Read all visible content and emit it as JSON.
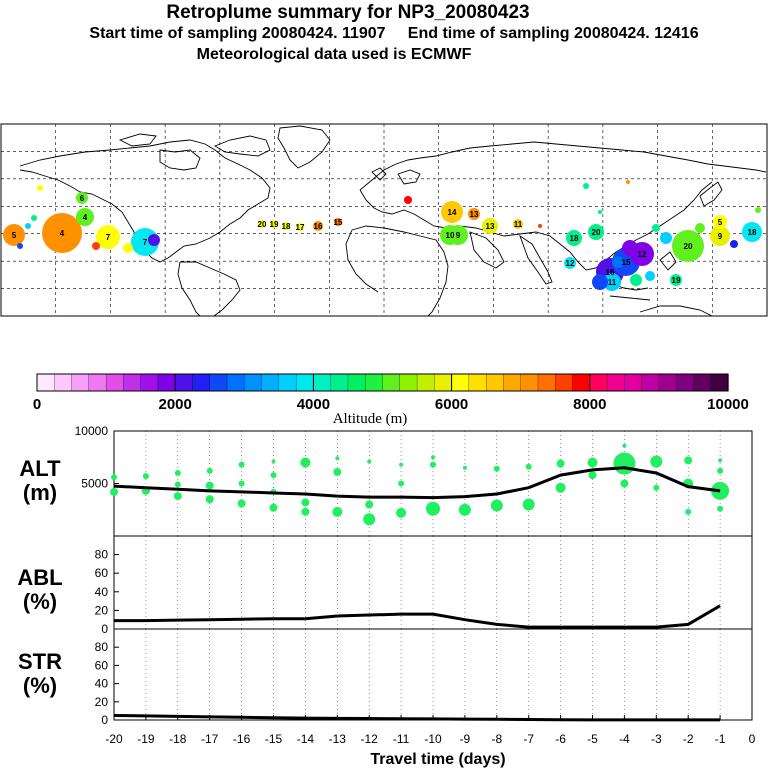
{
  "header": {
    "title": "Retroplume summary for NP3_20080423",
    "sampling": "Start time of sampling 20080424. 11907     End time of sampling 20080424. 12416",
    "met": "Meteorological data used is ECMWF"
  },
  "colorbar": {
    "colors": [
      "#ffe8ff",
      "#ffc8ff",
      "#f8a0f8",
      "#f078f0",
      "#e050e8",
      "#c030e8",
      "#a010e8",
      "#8000e8",
      "#5010e8",
      "#2020f0",
      "#1048f8",
      "#0070ff",
      "#0090ff",
      "#00b0ff",
      "#00d0ff",
      "#00e8f0",
      "#00f0c0",
      "#00f090",
      "#00f060",
      "#20f040",
      "#60f020",
      "#90f000",
      "#c0f000",
      "#e8f000",
      "#ffff00",
      "#ffe000",
      "#ffc800",
      "#ffa800",
      "#ff9000",
      "#ff7000",
      "#ff4000",
      "#ff0000",
      "#ff0060",
      "#f00090",
      "#e000a0",
      "#c000a0",
      "#a00090",
      "#800080",
      "#600060",
      "#400040"
    ],
    "tick_labels": [
      "0",
      "2000",
      "4000",
      "6000",
      "8000",
      "10000"
    ],
    "axis_title": "Altitude (m)"
  },
  "map_labels": [
    {
      "t": "5",
      "c": "#ff9000"
    },
    {
      "t": "4",
      "c": "#ff9000"
    },
    {
      "t": "4",
      "c": "#60f020"
    },
    {
      "t": "6",
      "c": "#60f020"
    },
    {
      "t": "7",
      "c": "#ffff00"
    },
    {
      "t": "7",
      "c": "#00e8f0"
    },
    {
      "t": "20",
      "c": "#ffff00"
    },
    {
      "t": "19",
      "c": "#ffff00"
    },
    {
      "t": "18",
      "c": "#ffff00"
    },
    {
      "t": "17",
      "c": "#ffff00"
    },
    {
      "t": "16",
      "c": "#ff9000"
    },
    {
      "t": "15",
      "c": "#ff7000"
    },
    {
      "t": "14",
      "c": "#ffc800"
    },
    {
      "t": "13",
      "c": "#ff9000"
    },
    {
      "t": "10",
      "c": "#60f020"
    },
    {
      "t": "9",
      "c": "#60f020"
    },
    {
      "t": "13",
      "c": "#e8f000"
    },
    {
      "t": "11",
      "c": "#ffc800"
    },
    {
      "t": "18",
      "c": "#00f090"
    },
    {
      "t": "20",
      "c": "#00f090"
    },
    {
      "t": "16",
      "c": "#5010e8"
    },
    {
      "t": "15",
      "c": "#1048f8"
    },
    {
      "t": "12",
      "c": "#8000e8"
    },
    {
      "t": "11",
      "c": "#00d0ff"
    },
    {
      "t": "19",
      "c": "#00f090"
    },
    {
      "t": "20",
      "c": "#60f020"
    },
    {
      "t": "18",
      "c": "#00e8f0"
    },
    {
      "t": "9",
      "c": "#e8f000"
    },
    {
      "t": "5",
      "c": "#ffff00"
    },
    {
      "t": "12",
      "c": "#00e8f0"
    }
  ],
  "chart_data": [
    {
      "type": "scatter+line",
      "name": "ALT",
      "ylabel": "ALT\n(m)",
      "ylabel_top": "ALT",
      "ylabel_bottom": "(m)",
      "ylim": [
        0,
        10000
      ],
      "yticks": [
        "10000",
        "5000"
      ],
      "line": {
        "x": [
          -20,
          -19,
          -18,
          -17,
          -16,
          -15,
          -14,
          -13,
          -12,
          -11,
          -10,
          -9,
          -8,
          -7,
          -6,
          -5,
          -4,
          -3,
          -2,
          -1
        ],
        "y": [
          4750,
          4600,
          4450,
          4300,
          4200,
          4100,
          4000,
          3800,
          3700,
          3700,
          3650,
          3750,
          4000,
          4600,
          5800,
          6300,
          6500,
          6000,
          4700,
          4300
        ]
      },
      "points": [
        {
          "x": -20,
          "y": 5600,
          "r": 3
        },
        {
          "x": -20,
          "y": 4200,
          "r": 4
        },
        {
          "x": -19,
          "y": 5700,
          "r": 3
        },
        {
          "x": -19,
          "y": 4300,
          "r": 4
        },
        {
          "x": -18,
          "y": 6000,
          "r": 3
        },
        {
          "x": -18,
          "y": 4900,
          "r": 3
        },
        {
          "x": -18,
          "y": 3800,
          "r": 4
        },
        {
          "x": -17,
          "y": 6200,
          "r": 3
        },
        {
          "x": -17,
          "y": 4800,
          "r": 4
        },
        {
          "x": -17,
          "y": 3500,
          "r": 4
        },
        {
          "x": -16,
          "y": 6800,
          "r": 3
        },
        {
          "x": -16,
          "y": 5000,
          "r": 3
        },
        {
          "x": -16,
          "y": 3100,
          "r": 4
        },
        {
          "x": -15,
          "y": 7100,
          "r": 2
        },
        {
          "x": -15,
          "y": 5800,
          "r": 3
        },
        {
          "x": -15,
          "y": 4200,
          "r": 3
        },
        {
          "x": -15,
          "y": 2700,
          "r": 4
        },
        {
          "x": -14,
          "y": 7000,
          "r": 5
        },
        {
          "x": -14,
          "y": 3200,
          "r": 4
        },
        {
          "x": -14,
          "y": 2300,
          "r": 4
        },
        {
          "x": -13,
          "y": 7400,
          "r": 2
        },
        {
          "x": -13,
          "y": 6100,
          "r": 4
        },
        {
          "x": -13,
          "y": 2300,
          "r": 5
        },
        {
          "x": -12,
          "y": 7100,
          "r": 2
        },
        {
          "x": -12,
          "y": 3000,
          "r": 4
        },
        {
          "x": -12,
          "y": 1600,
          "r": 6
        },
        {
          "x": -11,
          "y": 6800,
          "r": 2
        },
        {
          "x": -11,
          "y": 5000,
          "r": 3
        },
        {
          "x": -11,
          "y": 2200,
          "r": 5
        },
        {
          "x": -10,
          "y": 7500,
          "r": 2
        },
        {
          "x": -10,
          "y": 6800,
          "r": 3
        },
        {
          "x": -10,
          "y": 2600,
          "r": 7
        },
        {
          "x": -9,
          "y": 6500,
          "r": 2
        },
        {
          "x": -9,
          "y": 2500,
          "r": 6
        },
        {
          "x": -8,
          "y": 6400,
          "r": 3
        },
        {
          "x": -8,
          "y": 2900,
          "r": 6
        },
        {
          "x": -7,
          "y": 6600,
          "r": 3
        },
        {
          "x": -7,
          "y": 3000,
          "r": 6
        },
        {
          "x": -6,
          "y": 6900,
          "r": 4
        },
        {
          "x": -6,
          "y": 4600,
          "r": 5
        },
        {
          "x": -5,
          "y": 7000,
          "r": 5
        },
        {
          "x": -5,
          "y": 5800,
          "r": 4
        },
        {
          "x": -4,
          "y": 8600,
          "r": 2
        },
        {
          "x": -4,
          "y": 6900,
          "r": 11
        },
        {
          "x": -4,
          "y": 5000,
          "r": 4
        },
        {
          "x": -3,
          "y": 7100,
          "r": 6
        },
        {
          "x": -3,
          "y": 4600,
          "r": 3
        },
        {
          "x": -2,
          "y": 7200,
          "r": 4
        },
        {
          "x": -2,
          "y": 5000,
          "r": 5
        },
        {
          "x": -2,
          "y": 2300,
          "r": 3
        },
        {
          "x": -1,
          "y": 7200,
          "r": 2
        },
        {
          "x": -1,
          "y": 6200,
          "r": 3
        },
        {
          "x": -1,
          "y": 4300,
          "r": 9
        },
        {
          "x": -1,
          "y": 2600,
          "r": 3
        }
      ],
      "point_color": "#20f060"
    },
    {
      "type": "line",
      "name": "ABL",
      "ylabel_top": "ABL",
      "ylabel_bottom": "(%)",
      "ylim": [
        0,
        100
      ],
      "yticks": [
        "80",
        "60",
        "40",
        "20",
        "0"
      ],
      "x": [
        -20,
        -19,
        -18,
        -17,
        -16,
        -15,
        -14,
        -13,
        -12,
        -11,
        -10,
        -9,
        -8,
        -7,
        -6,
        -5,
        -4,
        -3,
        -2,
        -1
      ],
      "y": [
        9,
        9,
        9.5,
        10,
        10.5,
        11,
        11,
        14,
        15,
        16,
        16,
        10,
        5,
        2,
        2,
        2,
        2,
        2,
        5,
        25
      ]
    },
    {
      "type": "line",
      "name": "STR",
      "ylabel_top": "STR",
      "ylabel_bottom": "(%)",
      "ylim": [
        0,
        100
      ],
      "yticks": [
        "80",
        "60",
        "40",
        "20",
        "0"
      ],
      "x": [
        -20,
        -19,
        -18,
        -17,
        -16,
        -15,
        -14,
        -13,
        -12,
        -11,
        -10,
        -9,
        -8,
        -7,
        -6,
        -5,
        -4,
        -3,
        -2,
        -1
      ],
      "y": [
        5,
        4.5,
        4,
        3.5,
        3,
        2.5,
        2,
        1.8,
        1.6,
        1.4,
        1.2,
        1,
        0.8,
        0.5,
        0.3,
        0.2,
        0.2,
        0.2,
        0.2,
        0.2
      ]
    }
  ],
  "xaxis": {
    "tick_labels": [
      "-20",
      "-19",
      "-18",
      "-17",
      "-16",
      "-15",
      "-14",
      "-13",
      "-12",
      "-11",
      "-10",
      "-9",
      "-8",
      "-7",
      "-6",
      "-5",
      "-4",
      "-3",
      "-2",
      "-1",
      "0"
    ],
    "title": "Travel time (days)"
  }
}
